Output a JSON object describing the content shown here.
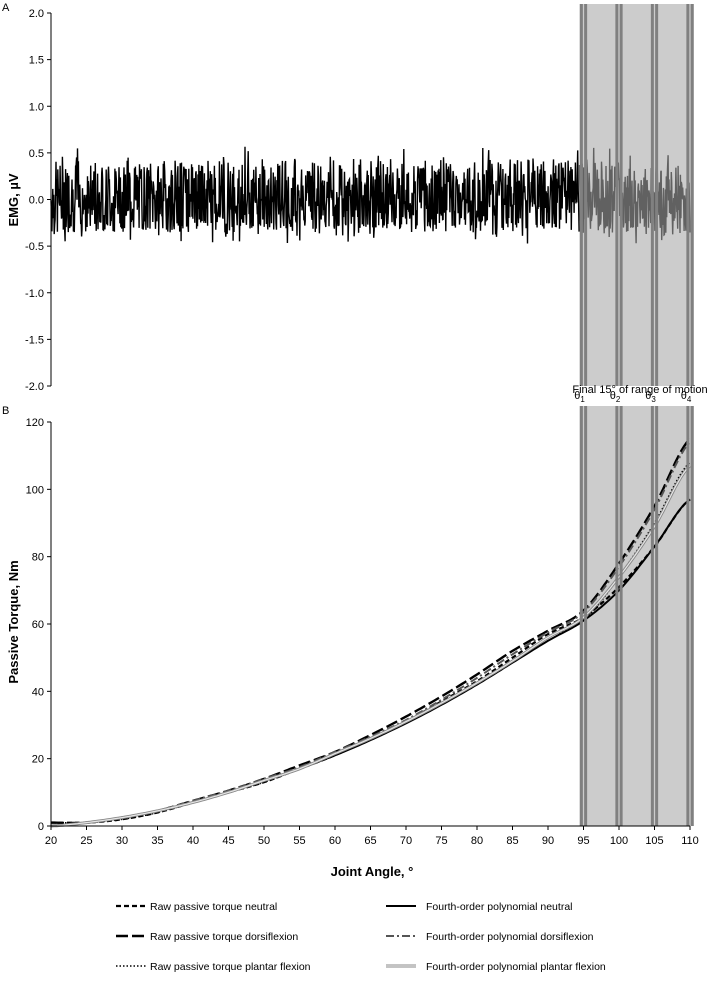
{
  "chart_data": [
    {
      "panel": "A",
      "type": "line",
      "ylabel": "EMG, µV",
      "ylim": [
        -2.0,
        2.0
      ],
      "yticks": [
        "2.0",
        "1.5",
        "1.0",
        "0.5",
        "0.0",
        "-0.5",
        "-1.0",
        "-1.5",
        "-2.0"
      ],
      "ytick_values": [
        2.0,
        1.5,
        1.0,
        0.5,
        0.0,
        -0.5,
        -1.0,
        -1.5,
        -2.0
      ],
      "xlim": [
        20,
        110
      ],
      "series": [
        {
          "approx_range": [
            -0.5,
            0.6
          ],
          "color": "#000000"
        }
      ],
      "shaded_region": {
        "x_range": [
          95,
          110
        ],
        "label": "Final 15° of range of motion",
        "color": "#cccccc",
        "dividers": [
          94.7,
          95.3,
          99.7,
          100.3,
          104.7,
          105.3,
          109.7,
          110.3
        ]
      },
      "grid": false
    },
    {
      "panel": "B",
      "type": "line",
      "xlabel": "Joint Angle, °",
      "ylabel": "Passive Torque, Nm",
      "xlim": [
        20,
        110
      ],
      "ylim": [
        0,
        120
      ],
      "xticks": [
        "20",
        "25",
        "30",
        "35",
        "40",
        "45",
        "50",
        "55",
        "60",
        "65",
        "70",
        "75",
        "80",
        "85",
        "90",
        "95",
        "100",
        "105",
        "110"
      ],
      "xtick_values": [
        20,
        25,
        30,
        35,
        40,
        45,
        50,
        55,
        60,
        65,
        70,
        75,
        80,
        85,
        90,
        95,
        100,
        105,
        110
      ],
      "yticks": [
        "120",
        "100",
        "80",
        "60",
        "40",
        "20",
        "0"
      ],
      "ytick_values": [
        120,
        100,
        80,
        60,
        40,
        20,
        0
      ],
      "theta_labels": [
        {
          "base": "θ",
          "sub": "1",
          "x": 95
        },
        {
          "base": "θ",
          "sub": "2",
          "x": 100
        },
        {
          "base": "θ",
          "sub": "3",
          "x": 105
        },
        {
          "base": "θ",
          "sub": "4",
          "x": 110
        }
      ],
      "x": [
        20,
        25,
        30,
        35,
        40,
        45,
        50,
        55,
        60,
        65,
        70,
        75,
        80,
        85,
        90,
        95,
        100,
        105,
        110
      ],
      "series": [
        {
          "name": "Raw passive torque neutral",
          "style": "short-dash",
          "values": [
            1,
            1,
            2,
            4,
            7,
            10,
            13,
            17,
            21,
            26,
            31,
            37,
            43,
            50,
            57,
            62,
            71,
            83,
            97
          ]
        },
        {
          "name": "Fourth-order polynomial neutral",
          "style": "solid",
          "values": [
            0,
            1,
            2.5,
            4.5,
            7,
            10,
            13.5,
            17,
            21,
            25.5,
            30.5,
            36,
            42,
            48.5,
            55,
            61,
            70,
            83,
            97
          ]
        },
        {
          "name": "Raw passive torque dorsiflexion",
          "style": "long-dash",
          "values": [
            1,
            1,
            2.5,
            4.5,
            7.5,
            10.5,
            14,
            18,
            22,
            27,
            32.5,
            38.5,
            45,
            52,
            58,
            64,
            78,
            95,
            115
          ]
        },
        {
          "name": "Fourth-order polynomial dorsiflexion",
          "style": "dash-dot",
          "values": [
            0,
            1,
            2.5,
            4.5,
            7.5,
            10.5,
            14,
            17.5,
            22,
            26.5,
            31.5,
            37.5,
            44,
            51,
            57.5,
            63.5,
            77,
            94,
            114
          ]
        },
        {
          "name": "Raw passive torque plantar flexion",
          "style": "dotted",
          "values": [
            1,
            1,
            2,
            4,
            7,
            10,
            13,
            17,
            21,
            26,
            31,
            36.5,
            42.5,
            49,
            56,
            61,
            74,
            90,
            108
          ]
        },
        {
          "name": "Fourth-order polynomial plantar flexion",
          "style": "double",
          "values": [
            0,
            1,
            2.5,
            4.5,
            7,
            10,
            13.5,
            17,
            21.5,
            26,
            31,
            36.5,
            42.5,
            49,
            56,
            62,
            74,
            89,
            107
          ]
        }
      ],
      "shaded_region": {
        "x_range": [
          95,
          110
        ],
        "color": "#cccccc"
      },
      "legend_placement": "bottom",
      "grid": false
    }
  ],
  "panels": {
    "a_letter": "A",
    "b_letter": "B",
    "a_ylabel": "EMG, µV",
    "b_ylabel": "Passive Torque, Nm",
    "b_xlabel": "Joint Angle, °",
    "shaded_label": "Final 15° of range of motion"
  },
  "legend": [
    {
      "label": "Raw passive torque neutral",
      "style": "short-dash"
    },
    {
      "label": "Fourth-order polynomial neutral",
      "style": "solid"
    },
    {
      "label": "Raw passive torque dorsiflexion",
      "style": "long-dash"
    },
    {
      "label": "Fourth-order polynomial dorsiflexion",
      "style": "dash-dot"
    },
    {
      "label": "Raw passive torque plantar flexion",
      "style": "dotted"
    },
    {
      "label": "Fourth-order polynomial plantar flexion",
      "style": "double"
    }
  ]
}
